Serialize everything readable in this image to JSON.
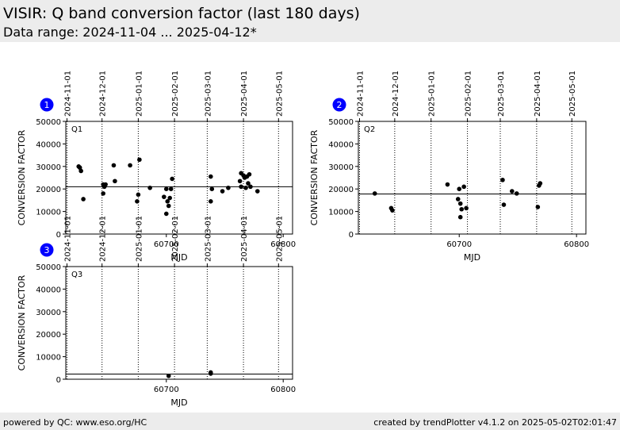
{
  "header": {
    "title": "VISIR: Q band conversion factor (last 180 days)",
    "subtitle": "Data range: 2024-11-04 ... 2025-04-12*"
  },
  "footer": {
    "left": "powered by QC: www.eso.org/HC",
    "right": "created by trendPlotter v4.1.2 on 2025-05-02T02:01:47"
  },
  "colors": {
    "badge": "#0000ff",
    "points": "#000000",
    "background": "#ececec"
  },
  "chart_data": [
    {
      "type": "scatter",
      "panel_number": "1",
      "panel_label": "Q1",
      "xlabel": "MJD",
      "ylabel": "CONVERSION FACTOR",
      "xlim": [
        60614,
        60808
      ],
      "ylim": [
        0,
        50000
      ],
      "x_ticks": [
        60700,
        60800
      ],
      "y_ticks": [
        0,
        10000,
        20000,
        30000,
        40000,
        50000
      ],
      "date_ticks": [
        {
          "label": "2024-11-01",
          "mjd": 60615
        },
        {
          "label": "2024-12-01",
          "mjd": 60645
        },
        {
          "label": "2025-01-01",
          "mjd": 60676
        },
        {
          "label": "2025-02-01",
          "mjd": 60707
        },
        {
          "label": "2025-03-01",
          "mjd": 60735
        },
        {
          "label": "2025-04-01",
          "mjd": 60766
        },
        {
          "label": "2025-05-01",
          "mjd": 60796
        }
      ],
      "reference_line": 21000,
      "points": [
        {
          "x": 60625,
          "y": 30000
        },
        {
          "x": 60626,
          "y": 29500
        },
        {
          "x": 60627,
          "y": 28000
        },
        {
          "x": 60629,
          "y": 15500
        },
        {
          "x": 60646,
          "y": 22000
        },
        {
          "x": 60646,
          "y": 18000
        },
        {
          "x": 60647,
          "y": 21500
        },
        {
          "x": 60647,
          "y": 21000
        },
        {
          "x": 60648,
          "y": 22000
        },
        {
          "x": 60655,
          "y": 30500
        },
        {
          "x": 60656,
          "y": 23500
        },
        {
          "x": 60669,
          "y": 30500
        },
        {
          "x": 60675,
          "y": 14500
        },
        {
          "x": 60676,
          "y": 17500
        },
        {
          "x": 60677,
          "y": 33000
        },
        {
          "x": 60686,
          "y": 20500
        },
        {
          "x": 60698,
          "y": 16500
        },
        {
          "x": 60700,
          "y": 20000
        },
        {
          "x": 60700,
          "y": 9000
        },
        {
          "x": 60701,
          "y": 14500
        },
        {
          "x": 60702,
          "y": 12500
        },
        {
          "x": 60703,
          "y": 16000
        },
        {
          "x": 60704,
          "y": 20000
        },
        {
          "x": 60705,
          "y": 24500
        },
        {
          "x": 60738,
          "y": 25500
        },
        {
          "x": 60738,
          "y": 14500
        },
        {
          "x": 60739,
          "y": 20000
        },
        {
          "x": 60748,
          "y": 19000
        },
        {
          "x": 60753,
          "y": 20500
        },
        {
          "x": 60763,
          "y": 23500
        },
        {
          "x": 60764,
          "y": 27000
        },
        {
          "x": 60764,
          "y": 21000
        },
        {
          "x": 60766,
          "y": 26000
        },
        {
          "x": 60767,
          "y": 25000
        },
        {
          "x": 60768,
          "y": 20500
        },
        {
          "x": 60769,
          "y": 25500
        },
        {
          "x": 60770,
          "y": 22500
        },
        {
          "x": 60771,
          "y": 26500
        },
        {
          "x": 60772,
          "y": 21000
        },
        {
          "x": 60778,
          "y": 19000
        }
      ]
    },
    {
      "type": "scatter",
      "panel_number": "2",
      "panel_label": "Q2",
      "xlabel": "MJD",
      "ylabel": "CONVERSION FACTOR",
      "xlim": [
        60614,
        60808
      ],
      "ylim": [
        0,
        50000
      ],
      "x_ticks": [
        60700,
        60800
      ],
      "y_ticks": [
        0,
        10000,
        20000,
        30000,
        40000,
        50000
      ],
      "date_ticks": [
        {
          "label": "2024-11-01",
          "mjd": 60615
        },
        {
          "label": "2024-12-01",
          "mjd": 60645
        },
        {
          "label": "2025-01-01",
          "mjd": 60676
        },
        {
          "label": "2025-02-01",
          "mjd": 60707
        },
        {
          "label": "2025-03-01",
          "mjd": 60735
        },
        {
          "label": "2025-04-01",
          "mjd": 60766
        },
        {
          "label": "2025-05-01",
          "mjd": 60796
        }
      ],
      "reference_line": 17800,
      "points": [
        {
          "x": 60628,
          "y": 18000
        },
        {
          "x": 60642,
          "y": 11500
        },
        {
          "x": 60643,
          "y": 10500
        },
        {
          "x": 60690,
          "y": 22000
        },
        {
          "x": 60699,
          "y": 15500
        },
        {
          "x": 60700,
          "y": 20000
        },
        {
          "x": 60701,
          "y": 7500
        },
        {
          "x": 60701,
          "y": 13500
        },
        {
          "x": 60702,
          "y": 11000
        },
        {
          "x": 60704,
          "y": 21000
        },
        {
          "x": 60706,
          "y": 11500
        },
        {
          "x": 60737,
          "y": 24000
        },
        {
          "x": 60738,
          "y": 13000
        },
        {
          "x": 60745,
          "y": 19000
        },
        {
          "x": 60749,
          "y": 18000
        },
        {
          "x": 60767,
          "y": 12000
        },
        {
          "x": 60768,
          "y": 21500
        },
        {
          "x": 60769,
          "y": 22500
        }
      ]
    },
    {
      "type": "scatter",
      "panel_number": "3",
      "panel_label": "Q3",
      "xlabel": "MJD",
      "ylabel": "CONVERSION FACTOR",
      "xlim": [
        60614,
        60808
      ],
      "ylim": [
        0,
        50000
      ],
      "x_ticks": [
        60700,
        60800
      ],
      "y_ticks": [
        0,
        10000,
        20000,
        30000,
        40000,
        50000
      ],
      "date_ticks": [
        {
          "label": "2024-11-01",
          "mjd": 60615
        },
        {
          "label": "2024-12-01",
          "mjd": 60645
        },
        {
          "label": "2025-01-01",
          "mjd": 60676
        },
        {
          "label": "2025-02-01",
          "mjd": 60707
        },
        {
          "label": "2025-03-01",
          "mjd": 60735
        },
        {
          "label": "2025-04-01",
          "mjd": 60766
        },
        {
          "label": "2025-05-01",
          "mjd": 60796
        }
      ],
      "reference_line": 2300,
      "points": [
        {
          "x": 60702,
          "y": 1500
        },
        {
          "x": 60738,
          "y": 3000
        },
        {
          "x": 60738,
          "y": 2500
        }
      ]
    }
  ]
}
